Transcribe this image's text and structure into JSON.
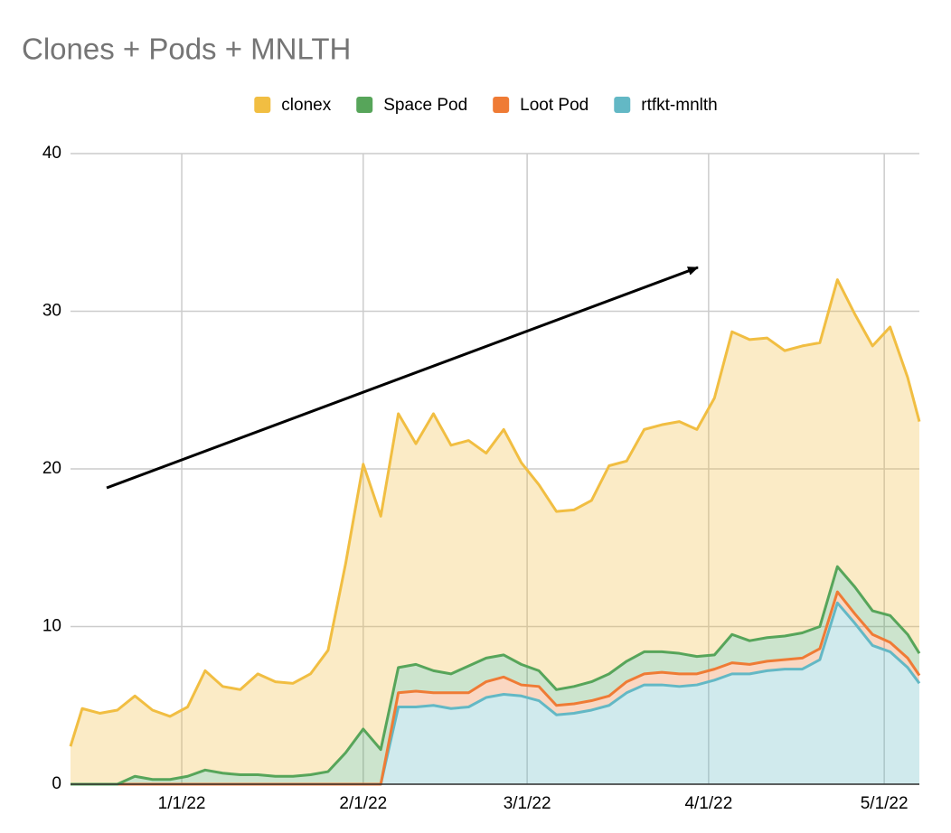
{
  "chart_data": {
    "type": "stacked-area",
    "title": "Clones + Pods + MNLTH",
    "x": [
      "2021-12-13",
      "2021-12-15",
      "2021-12-18",
      "2021-12-21",
      "2021-12-24",
      "2021-12-27",
      "2021-12-30",
      "2022-01-02",
      "2022-01-05",
      "2022-01-08",
      "2022-01-11",
      "2022-01-14",
      "2022-01-17",
      "2022-01-20",
      "2022-01-23",
      "2022-01-26",
      "2022-01-29",
      "2022-02-01",
      "2022-02-04",
      "2022-02-07",
      "2022-02-10",
      "2022-02-13",
      "2022-02-16",
      "2022-02-19",
      "2022-02-22",
      "2022-02-25",
      "2022-02-28",
      "2022-03-03",
      "2022-03-06",
      "2022-03-09",
      "2022-03-12",
      "2022-03-15",
      "2022-03-18",
      "2022-03-21",
      "2022-03-24",
      "2022-03-27",
      "2022-03-30",
      "2022-04-02",
      "2022-04-05",
      "2022-04-08",
      "2022-04-11",
      "2022-04-14",
      "2022-04-17",
      "2022-04-20",
      "2022-04-23",
      "2022-04-26",
      "2022-04-29",
      "2022-05-02",
      "2022-05-05",
      "2022-05-07"
    ],
    "series": [
      {
        "name": "rtfkt-mnlth",
        "color": "#63b8c5",
        "values": [
          0,
          0,
          0,
          0,
          0,
          0,
          0,
          0,
          0,
          0,
          0,
          0,
          0,
          0,
          0,
          0,
          0,
          0,
          0,
          4.9,
          4.9,
          5.0,
          4.8,
          4.9,
          5.5,
          5.7,
          5.6,
          5.3,
          4.4,
          4.5,
          4.7,
          5.0,
          5.8,
          6.3,
          6.3,
          6.2,
          6.3,
          6.6,
          7.0,
          7.0,
          7.2,
          7.3,
          7.3,
          7.9,
          11.5,
          10.2,
          8.8,
          8.4,
          7.4,
          6.4
        ]
      },
      {
        "name": "Loot Pod",
        "color": "#ef7b35",
        "values": [
          0,
          0,
          0,
          0,
          0,
          0,
          0,
          0,
          0,
          0,
          0,
          0,
          0,
          0,
          0,
          0,
          0,
          0,
          0,
          0.9,
          1.0,
          0.8,
          1.0,
          0.9,
          1.0,
          1.1,
          0.7,
          0.9,
          0.6,
          0.6,
          0.6,
          0.6,
          0.7,
          0.7,
          0.8,
          0.8,
          0.7,
          0.7,
          0.7,
          0.6,
          0.6,
          0.6,
          0.7,
          0.7,
          0.7,
          0.6,
          0.7,
          0.6,
          0.6,
          0.5
        ]
      },
      {
        "name": "Space Pod",
        "color": "#57a55a",
        "values": [
          0,
          0,
          0,
          0,
          0.5,
          0.3,
          0.3,
          0.5,
          0.9,
          0.7,
          0.6,
          0.6,
          0.5,
          0.5,
          0.6,
          0.8,
          2.0,
          3.5,
          2.2,
          1.6,
          1.7,
          1.4,
          1.2,
          1.7,
          1.5,
          1.4,
          1.3,
          1.0,
          1.0,
          1.1,
          1.2,
          1.4,
          1.3,
          1.4,
          1.3,
          1.3,
          1.1,
          0.9,
          1.8,
          1.5,
          1.5,
          1.5,
          1.6,
          1.4,
          1.6,
          1.7,
          1.5,
          1.7,
          1.5,
          1.4
        ]
      },
      {
        "name": "clonex",
        "color": "#f1be42",
        "values": [
          2.4,
          4.8,
          4.5,
          4.7,
          5.1,
          4.4,
          4.0,
          4.4,
          6.3,
          5.5,
          5.4,
          6.4,
          6.0,
          5.9,
          6.4,
          7.7,
          12.0,
          16.8,
          14.8,
          16.1,
          14.0,
          16.3,
          14.5,
          14.3,
          13.0,
          14.3,
          12.8,
          11.8,
          11.3,
          11.2,
          11.5,
          13.2,
          12.7,
          14.1,
          14.4,
          14.7,
          14.4,
          16.3,
          19.2,
          19.1,
          19.0,
          18.1,
          18.2,
          18.0,
          18.2,
          17.3,
          16.8,
          18.3,
          16.3,
          14.7
        ]
      }
    ],
    "legend_order": [
      3,
      2,
      1,
      0
    ],
    "xlim": [
      "2021-12-13",
      "2022-05-07"
    ],
    "xticks": [
      {
        "value": "2022-01-01",
        "label": "1/1/22"
      },
      {
        "value": "2022-02-01",
        "label": "2/1/22"
      },
      {
        "value": "2022-03-01",
        "label": "3/1/22"
      },
      {
        "value": "2022-04-01",
        "label": "4/1/22"
      },
      {
        "value": "2022-05-01",
        "label": "5/1/22"
      }
    ],
    "ylim": [
      0,
      40
    ],
    "yticks": [
      0,
      10,
      20,
      30,
      40
    ],
    "grid": true,
    "legend": "top"
  }
}
